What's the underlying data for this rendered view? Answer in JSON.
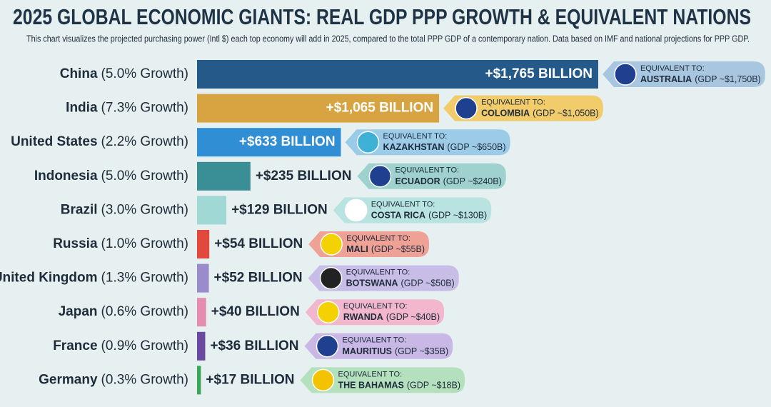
{
  "chart_data": {
    "type": "bar",
    "title": "2025 GLOBAL ECONOMIC GIANTS: REAL GDP PPP GROWTH & EQUIVALENT NATIONS",
    "subtitle": "This chart visualizes the projected purchasing power (Intl $) each top economy will add in 2025, compared to the total PPP GDP of a contemporary nation. Data based on IMF and national projections for PPP GDP.",
    "categories": [
      "China",
      "India",
      "United States",
      "Indonesia",
      "Brazil",
      "Russia",
      "United Kingdom",
      "Japan",
      "France",
      "Germany"
    ],
    "growth_labels": [
      "(5.0% Growth)",
      "(7.3% Growth)",
      "(2.2% Growth)",
      "(5.0% Growth)",
      "(3.0% Growth)",
      "(1.0% Growth)",
      "(1.3% Growth)",
      "(0.6% Growth)",
      "(0.9% Growth)",
      "(0.3% Growth)"
    ],
    "values": [
      1765,
      1065,
      633,
      235,
      129,
      54,
      52,
      40,
      36,
      17
    ],
    "value_labels": [
      "+$1,765 BILLION",
      "+$1,065 BILLION",
      "+$633 BILLION",
      "+$235 BILLION",
      "+$129 BILLION",
      "+$54 BILLION",
      "+$52 BILLION",
      "+$40 BILLION",
      "+$36 BILLION",
      "+$17 BILLION"
    ],
    "colors": [
      "#25598a",
      "#d8a441",
      "#2f8ed4",
      "#3a8e96",
      "#9fd8d5",
      "#e0493b",
      "#9a8bc9",
      "#e48db0",
      "#6a4a9f",
      "#3aa65a"
    ],
    "equivalent_prefix": "EQUIVALENT TO:",
    "equivalents": [
      {
        "country": "AUSTRALIA",
        "gdp_label": "(GDP ~$1,750B)",
        "color": "#a9c6e0"
      },
      {
        "country": "COLOMBIA",
        "gdp_label": "(GDP ~$1,050B)",
        "color": "#f2cb6b"
      },
      {
        "country": "KAZAKHSTAN",
        "gdp_label": "(GDP ~$650B)",
        "color": "#9ccbe8"
      },
      {
        "country": "ECUADOR",
        "gdp_label": "(GDP ~$240B)",
        "color": "#9fd2cf"
      },
      {
        "country": "COSTA RICA",
        "gdp_label": "(GDP ~$130B)",
        "color": "#b9e3e0"
      },
      {
        "country": "MALI",
        "gdp_label": "(GDP ~$55B)",
        "color": "#f0a196"
      },
      {
        "country": "BOTSWANA",
        "gdp_label": "(GDP ~$50B)",
        "color": "#c8bde6"
      },
      {
        "country": "RWANDA",
        "gdp_label": "(GDP ~$40B)",
        "color": "#f2b7cc"
      },
      {
        "country": "MAURITIUS",
        "gdp_label": "(GDP ~$35B)",
        "color": "#c9b8e6"
      },
      {
        "country": "THE BAHAMAS",
        "gdp_label": "(GDP ~$18B)",
        "color": "#b5e0bd"
      }
    ]
  }
}
